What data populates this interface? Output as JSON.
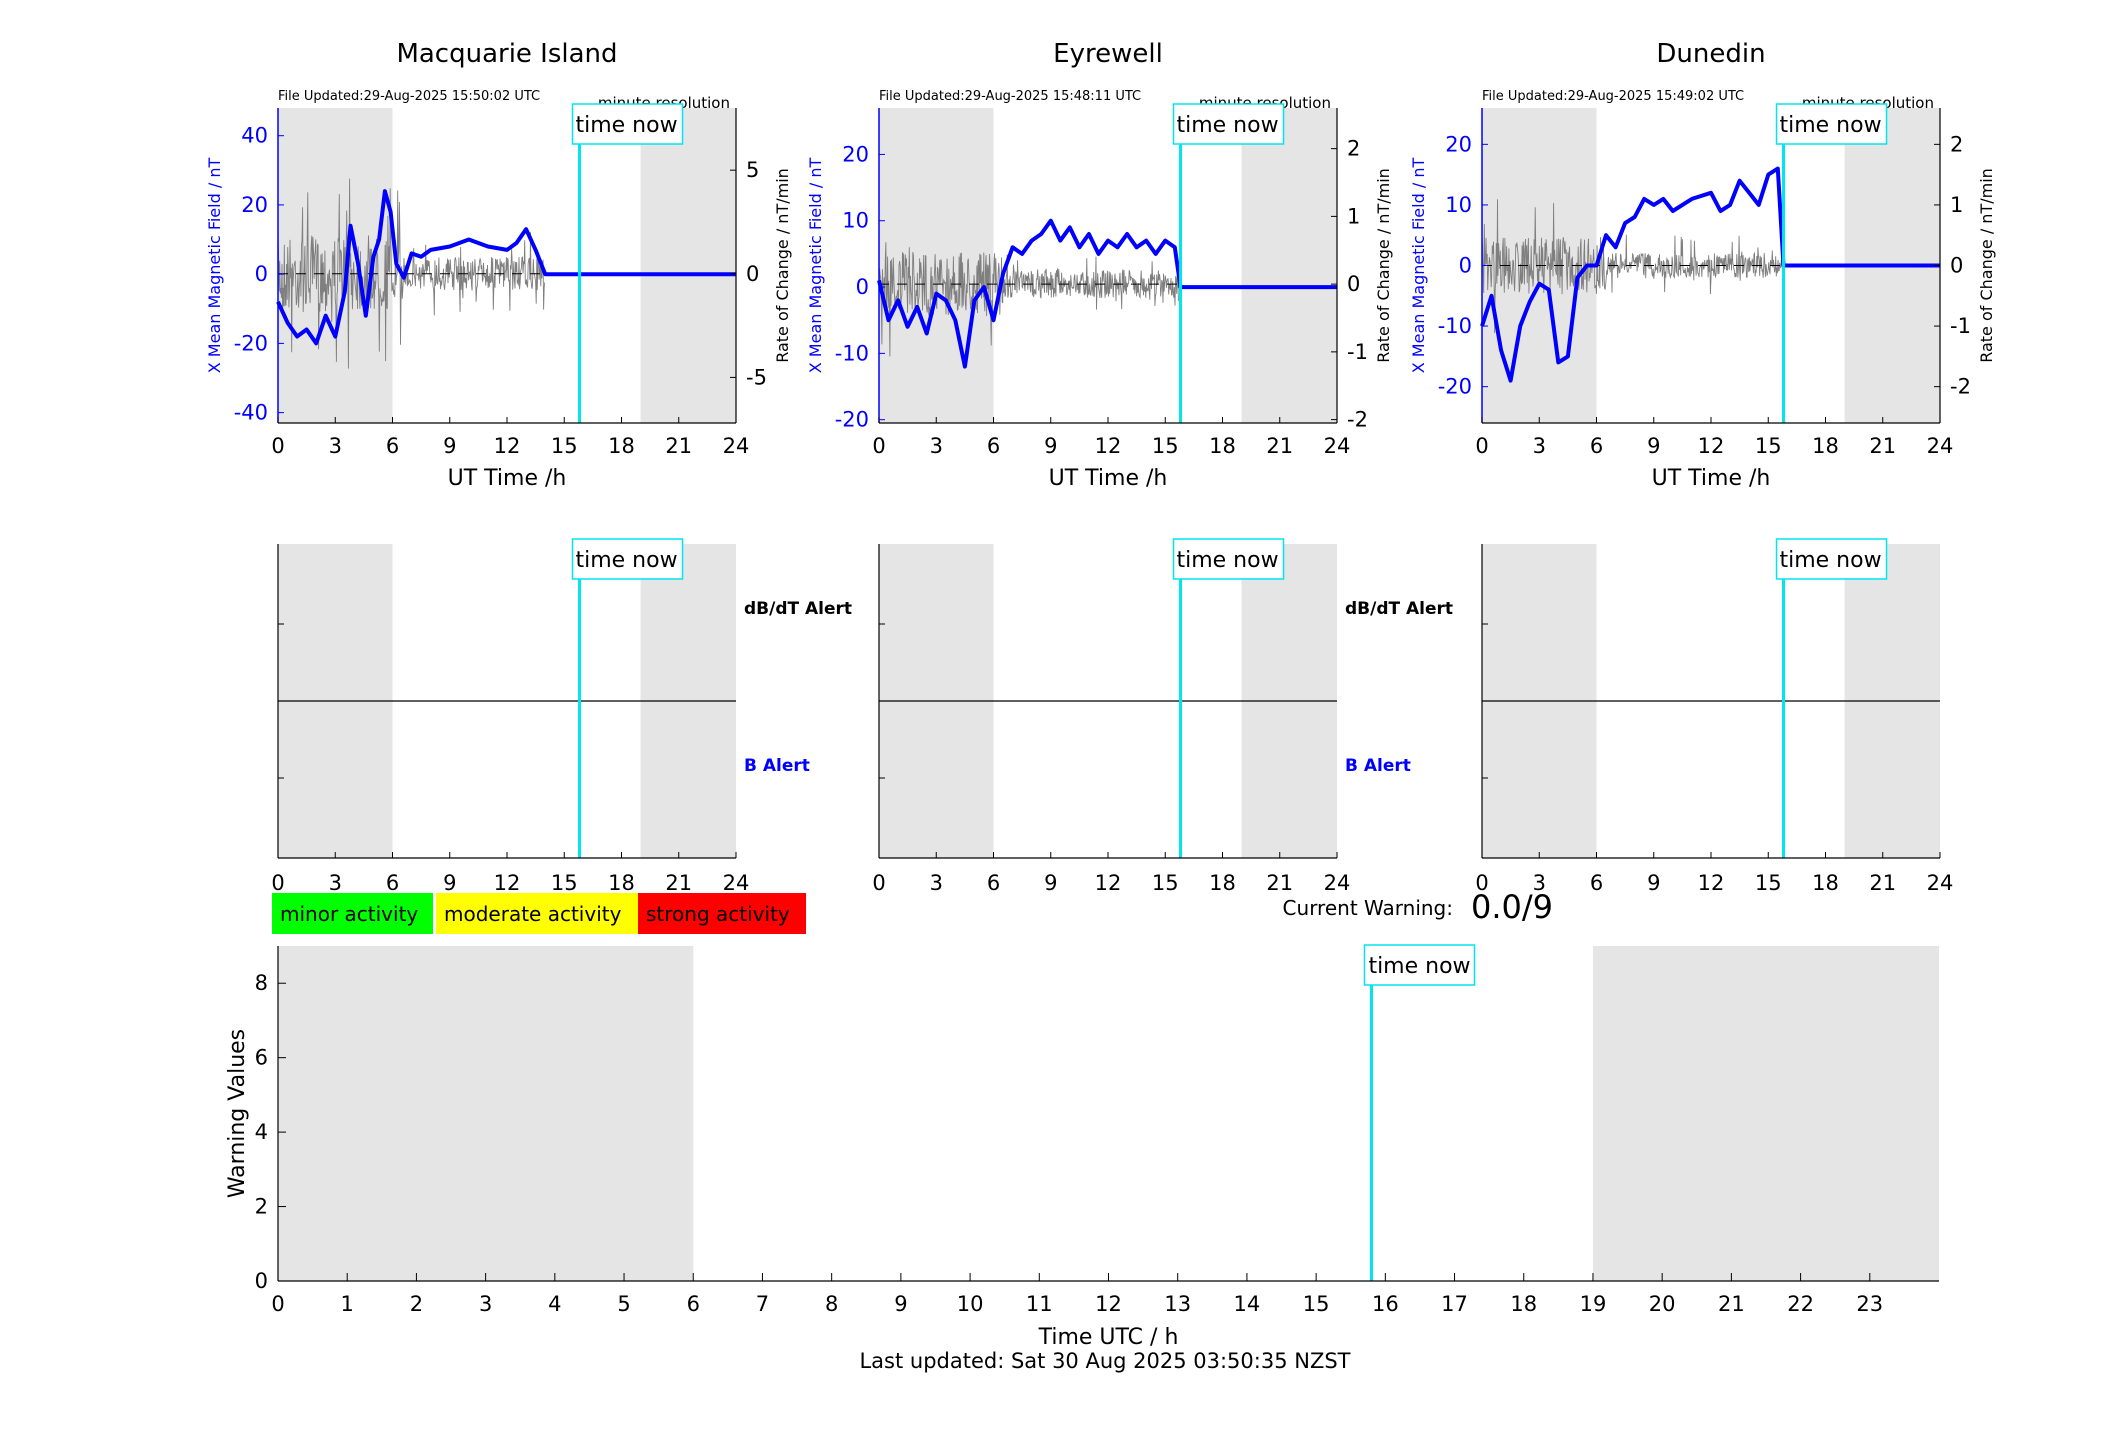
{
  "colors": {
    "field": "#0000ff",
    "rate": "#7f7f7f",
    "now": "#00e5ee",
    "shade": "#e5e5e5",
    "minor": "#00ff00",
    "moderate": "#ffff00",
    "strong": "#ff0000"
  },
  "panels": [
    {
      "title": "Macquarie Island",
      "file_updated": "File Updated:29-Aug-2025 15:50:02 UTC"
    },
    {
      "title": "Eyrewell",
      "file_updated": "File Updated:29-Aug-2025 15:48:11 UTC"
    },
    {
      "title": "Dunedin",
      "file_updated": "File Updated:29-Aug-2025 15:49:02 UTC"
    }
  ],
  "labels": {
    "resolution": "minute resolution",
    "time_now": "time now",
    "ut_xlabel": "UT Time /h",
    "y_left": "X Mean Magnetic Field / nT",
    "y_right": "Rate of Change / nT/min",
    "dbdt_alert": "dB/dT Alert",
    "b_alert": "B Alert",
    "current_warning_label": "Current Warning:",
    "current_warning_value": "0.0/9",
    "warn_ylabel": "Warning Values",
    "warn_xlabel": "Time UTC / h",
    "last_updated": "Last updated: Sat 30 Aug 2025 03:50:35 NZST"
  },
  "legend": [
    "minor activity",
    "moderate activity",
    "strong activity"
  ],
  "chart_data": [
    {
      "type": "line",
      "title": "Macquarie Island",
      "xlabel": "UT Time /h",
      "ylabel": "X Mean Magnetic Field / nT",
      "ylabel_right": "Rate of Change / nT/min",
      "xlim": [
        0,
        24
      ],
      "ylim": [
        -43,
        48
      ],
      "ylim_right": [
        -7.2,
        8.0
      ],
      "xticks": [
        0,
        3,
        6,
        9,
        12,
        15,
        18,
        21,
        24
      ],
      "yticks": [
        -40,
        -20,
        0,
        20,
        40
      ],
      "yticks_right": [
        -5,
        0,
        5
      ],
      "now_time": 15.8,
      "night_shading": [
        [
          0,
          6
        ],
        [
          19,
          24
        ]
      ],
      "series": [
        {
          "name": "X Mean Magnetic Field",
          "values_x": [
            0,
            0.5,
            1,
            1.5,
            2,
            2.5,
            3,
            3.5,
            3.8,
            4.2,
            4.6,
            5,
            5.3,
            5.6,
            5.9,
            6.2,
            6.6,
            7,
            7.5,
            8,
            9,
            10,
            11,
            12,
            12.5,
            13,
            13.5,
            14,
            15,
            24
          ],
          "values_y": [
            -8,
            -14,
            -18,
            -16,
            -20,
            -12,
            -18,
            -5,
            14,
            3,
            -12,
            5,
            10,
            24,
            18,
            3,
            -1,
            6,
            5,
            7,
            8,
            10,
            8,
            7,
            9,
            13,
            7,
            0,
            0,
            0
          ]
        }
      ]
    },
    {
      "type": "line",
      "title": "Eyrewell",
      "xlabel": "UT Time /h",
      "ylabel": "X Mean Magnetic Field / nT",
      "ylabel_right": "Rate of Change / nT/min",
      "xlim": [
        0,
        24
      ],
      "ylim": [
        -20.5,
        27
      ],
      "ylim_right": [
        -2.05,
        2.6
      ],
      "xticks": [
        0,
        3,
        6,
        9,
        12,
        15,
        18,
        21,
        24
      ],
      "yticks": [
        -20,
        -10,
        0,
        10,
        20
      ],
      "yticks_right": [
        -2,
        -1,
        0,
        1,
        2
      ],
      "now_time": 15.8,
      "night_shading": [
        [
          0,
          6
        ],
        [
          19,
          24
        ]
      ],
      "series": [
        {
          "name": "X Mean Magnetic Field",
          "values_x": [
            0,
            0.5,
            1,
            1.5,
            2,
            2.5,
            3,
            3.5,
            4,
            4.5,
            5,
            5.5,
            6,
            6.5,
            7,
            7.5,
            8,
            8.5,
            9,
            9.5,
            10,
            10.5,
            11,
            11.5,
            12,
            12.5,
            13,
            13.5,
            14,
            14.5,
            15,
            15.5,
            15.8,
            24
          ],
          "values_y": [
            1,
            -5,
            -2,
            -6,
            -3,
            -7,
            -1,
            -2,
            -5,
            -12,
            -2,
            0,
            -5,
            2,
            6,
            5,
            7,
            8,
            10,
            7,
            9,
            6,
            8,
            5,
            7,
            6,
            8,
            6,
            7,
            5,
            7,
            6,
            0,
            0
          ]
        }
      ]
    },
    {
      "type": "line",
      "title": "Dunedin",
      "xlabel": "UT Time /h",
      "ylabel": "X Mean Magnetic Field / nT",
      "ylabel_right": "Rate of Change / nT/min",
      "xlim": [
        0,
        24
      ],
      "ylim": [
        -26,
        26
      ],
      "ylim_right": [
        -2.6,
        2.6
      ],
      "xticks": [
        0,
        3,
        6,
        9,
        12,
        15,
        18,
        21,
        24
      ],
      "yticks": [
        -20,
        -10,
        0,
        10,
        20
      ],
      "yticks_right": [
        -2,
        -1,
        0,
        1,
        2
      ],
      "now_time": 15.8,
      "night_shading": [
        [
          0,
          6
        ],
        [
          19,
          24
        ]
      ],
      "series": [
        {
          "name": "X Mean Magnetic Field",
          "values_x": [
            0,
            0.5,
            1,
            1.5,
            2,
            2.5,
            3,
            3.5,
            4,
            4.5,
            5,
            5.5,
            6,
            6.5,
            7,
            7.5,
            8,
            8.5,
            9,
            9.5,
            10,
            11,
            12,
            12.5,
            13,
            13.5,
            14,
            14.5,
            15,
            15.5,
            15.8,
            24
          ],
          "values_y": [
            -10,
            -5,
            -14,
            -19,
            -10,
            -6,
            -3,
            -4,
            -16,
            -15,
            -2,
            0,
            0,
            5,
            3,
            7,
            8,
            11,
            10,
            11,
            9,
            11,
            12,
            9,
            10,
            14,
            12,
            10,
            15,
            16,
            0,
            0
          ]
        }
      ]
    },
    {
      "type": "line",
      "title": "",
      "xlabel": "Time UTC / h",
      "ylabel": "Warning Values",
      "xlim": [
        0,
        24
      ],
      "ylim": [
        0,
        9
      ],
      "xticks": [
        0,
        1,
        2,
        3,
        4,
        5,
        6,
        7,
        8,
        9,
        10,
        11,
        12,
        13,
        14,
        15,
        16,
        17,
        18,
        19,
        20,
        21,
        22,
        23
      ],
      "yticks": [
        0,
        2,
        4,
        6,
        8
      ],
      "now_time": 15.8,
      "night_shading": [
        [
          0,
          6
        ],
        [
          19,
          24
        ]
      ],
      "current_warning": 0.0
    }
  ]
}
